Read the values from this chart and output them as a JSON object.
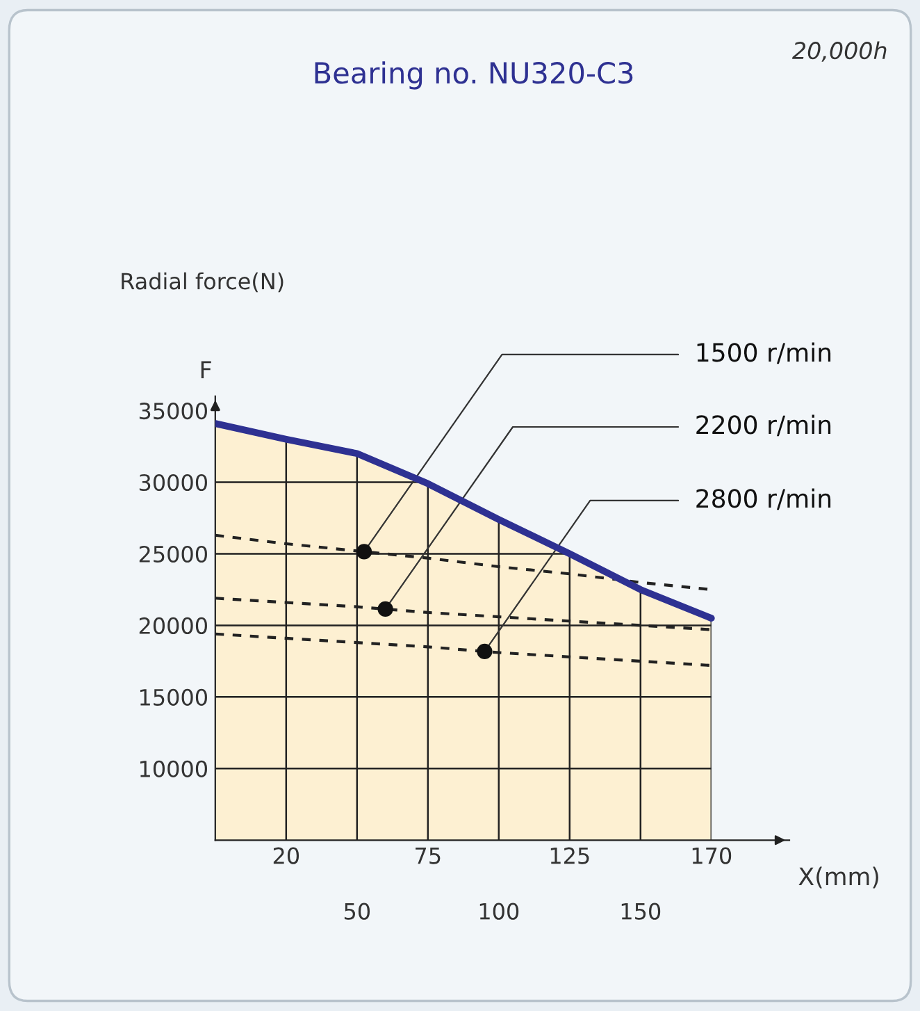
{
  "chart_data": {
    "type": "line",
    "title": "Bearing no. NU320-C3",
    "ylabel": "Radial force(N)",
    "xlabel": "X(mm)",
    "annotations": [
      "20,000h",
      "F"
    ],
    "categories": [
      null,
      "20",
      "50",
      "75",
      "100",
      "125",
      "150",
      "170"
    ],
    "series": [
      {
        "type": "area",
        "color": "#fdf0d2",
        "values": [
          34100,
          33000,
          32000,
          29900,
          27400,
          25000,
          22500,
          20500
        ]
      },
      {
        "type": "line",
        "color": "#2e3192",
        "line_style": "solid",
        "values": [
          34100,
          33000,
          32000,
          29900,
          27400,
          25000,
          22500,
          20500
        ]
      },
      {
        "name": "1500 r/min",
        "color": "#222222",
        "line_style": "dashed",
        "values": [
          26300,
          25700,
          25200,
          24700,
          24100,
          23600,
          23000,
          22500
        ]
      },
      {
        "name": "2200 r/min",
        "color": "#222222",
        "line_style": "dashed",
        "values": [
          21900,
          21600,
          21300,
          20900,
          20600,
          20300,
          20000,
          19700
        ]
      },
      {
        "name": "2800 r/min",
        "color": "#222222",
        "line_style": "dashed",
        "values": [
          19400,
          19100,
          18800,
          18500,
          18100,
          17800,
          17500,
          17200
        ]
      }
    ],
    "ylim": [
      5000,
      36000
    ],
    "yticks": [
      10000,
      15000,
      20000,
      25000,
      30000,
      35000
    ],
    "grid": true,
    "legend": false,
    "marker": "none"
  }
}
